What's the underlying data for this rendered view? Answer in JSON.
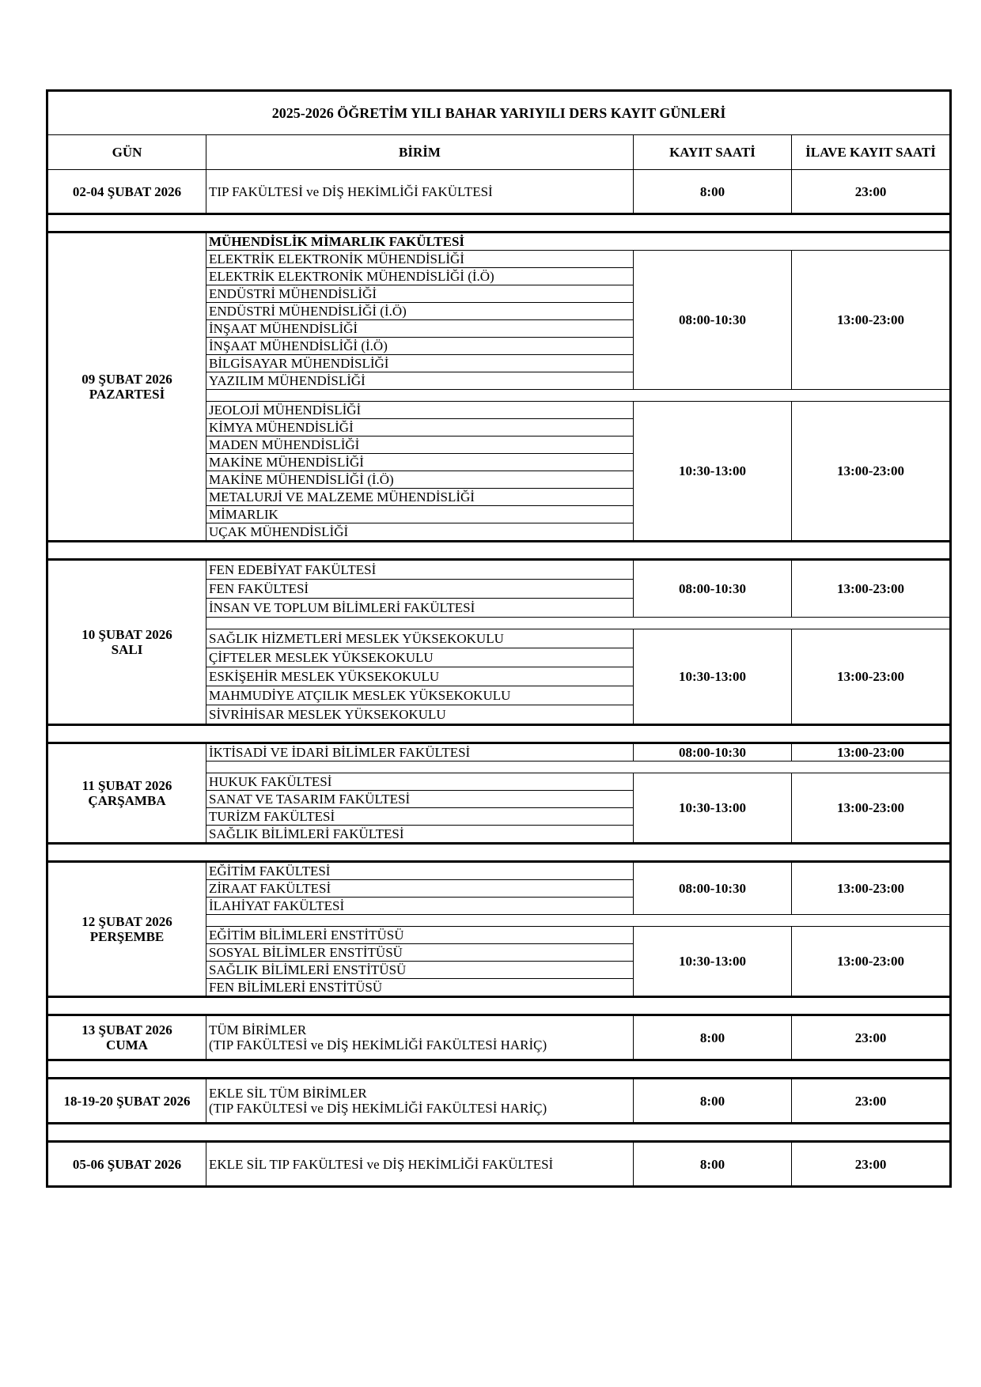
{
  "title": "2025-2026 ÖĞRETİM YILI BAHAR YARIYILI DERS KAYIT GÜNLERİ",
  "headers": {
    "gun": "GÜN",
    "birim": "BİRİM",
    "kayit": "KAYIT SAATİ",
    "ilave": "İLAVE KAYIT SAATİ"
  },
  "blocks": [
    {
      "day": [
        "02-04 ŞUBAT 2026"
      ],
      "single": true,
      "groups": [
        {
          "units": [
            [
              "TIP FAKÜLTESİ ve DİŞ HEKİMLİĞİ FAKÜLTESİ"
            ]
          ],
          "kayit": "8:00",
          "ilave": "23:00"
        }
      ]
    },
    {
      "day": [
        "09 ŞUBAT 2026",
        "PAZARTESİ"
      ],
      "faculty_header": "MÜHENDİSLİK MİMARLIK FAKÜLTESİ",
      "groups": [
        {
          "units": [
            [
              "ELEKTRİK ELEKTRONİK MÜHENDİSLİĞİ"
            ],
            [
              "ELEKTRİK ELEKTRONİK MÜHENDİSLİĞİ (İ.Ö)"
            ],
            [
              "ENDÜSTRİ MÜHENDİSLİĞİ"
            ],
            [
              "ENDÜSTRİ MÜHENDİSLİĞİ (İ.Ö)"
            ],
            [
              "İNŞAAT MÜHENDİSLİĞİ"
            ],
            [
              "İNŞAAT MÜHENDİSLİĞİ (İ.Ö)"
            ],
            [
              "BİLGİSAYAR MÜHENDİSLİĞİ"
            ],
            [
              "YAZILIM MÜHENDİSLİĞİ"
            ]
          ],
          "kayit": "08:00-10:30",
          "ilave": "13:00-23:00"
        },
        {
          "units": [
            [
              "JEOLOJİ MÜHENDİSLİĞİ"
            ],
            [
              "KİMYA MÜHENDİSLİĞİ"
            ],
            [
              "MADEN MÜHENDİSLİĞİ"
            ],
            [
              "MAKİNE MÜHENDİSLİĞİ"
            ],
            [
              "MAKİNE MÜHENDİSLİĞİ (İ.Ö)"
            ],
            [
              "METALURJİ VE MALZEME MÜHENDİSLİĞİ"
            ],
            [
              "MİMARLIK"
            ],
            [
              "UÇAK MÜHENDİSLİĞİ"
            ]
          ],
          "kayit": "10:30-13:00",
          "ilave": "13:00-23:00"
        }
      ]
    },
    {
      "day": [
        "10 ŞUBAT 2026",
        "SALI"
      ],
      "tall": true,
      "groups": [
        {
          "units": [
            [
              "FEN EDEBİYAT FAKÜLTESİ"
            ],
            [
              "FEN FAKÜLTESİ"
            ],
            [
              "İNSAN VE TOPLUM BİLİMLERİ FAKÜLTESİ"
            ]
          ],
          "kayit": "08:00-10:30",
          "ilave": "13:00-23:00"
        },
        {
          "units": [
            [
              "SAĞLIK HİZMETLERİ MESLEK YÜKSEKOKULU"
            ],
            [
              "ÇİFTELER MESLEK YÜKSEKOKULU"
            ],
            [
              "ESKİŞEHİR MESLEK YÜKSEKOKULU"
            ],
            [
              "MAHMUDİYE ATÇILIK MESLEK YÜKSEKOKULU"
            ],
            [
              "SİVRİHİSAR MESLEK YÜKSEKOKULU"
            ]
          ],
          "kayit": "10:30-13:00",
          "ilave": "13:00-23:00"
        }
      ]
    },
    {
      "day": [
        "11 ŞUBAT 2026",
        "ÇARŞAMBA"
      ],
      "groups": [
        {
          "units": [
            [
              "İKTİSADİ VE İDARİ BİLİMLER FAKÜLTESİ"
            ]
          ],
          "kayit": "08:00-10:30",
          "ilave": "13:00-23:00"
        },
        {
          "units": [
            [
              "HUKUK FAKÜLTESİ"
            ],
            [
              "SANAT VE TASARIM FAKÜLTESİ"
            ],
            [
              "TURİZM FAKÜLTESİ"
            ],
            [
              "SAĞLIK BİLİMLERİ FAKÜLTESİ"
            ]
          ],
          "kayit": "10:30-13:00",
          "ilave": "13:00-23:00"
        }
      ]
    },
    {
      "day": [
        "12 ŞUBAT 2026",
        "PERŞEMBE"
      ],
      "groups": [
        {
          "units": [
            [
              "EĞİTİM FAKÜLTESİ"
            ],
            [
              "ZİRAAT FAKÜLTESİ"
            ],
            [
              "İLAHİYAT FAKÜLTESİ"
            ]
          ],
          "kayit": "08:00-10:30",
          "ilave": "13:00-23:00"
        },
        {
          "units": [
            [
              "EĞİTİM BİLİMLERİ ENSTİTÜSÜ"
            ],
            [
              "SOSYAL BİLİMLER ENSTİTÜSÜ"
            ],
            [
              "SAĞLIK BİLİMLERİ ENSTİTÜSÜ"
            ],
            [
              "FEN BİLİMLERİ ENSTİTÜSÜ"
            ]
          ],
          "kayit": "10:30-13:00",
          "ilave": "13:00-23:00"
        }
      ]
    },
    {
      "day": [
        "13 ŞUBAT 2026",
        "CUMA"
      ],
      "single": true,
      "groups": [
        {
          "units": [
            [
              "TÜM BİRİMLER",
              "(TIP FAKÜLTESİ ve DİŞ HEKİMLİĞİ FAKÜLTESİ HARİÇ)"
            ]
          ],
          "kayit": "8:00",
          "ilave": "23:00"
        }
      ]
    },
    {
      "day": [
        "18-19-20 ŞUBAT 2026"
      ],
      "single": true,
      "groups": [
        {
          "units": [
            [
              "EKLE SİL TÜM BİRİMLER",
              "(TIP FAKÜLTESİ ve DİŞ HEKİMLİĞİ FAKÜLTESİ HARİÇ)"
            ]
          ],
          "kayit": "8:00",
          "ilave": "23:00"
        }
      ]
    },
    {
      "day": [
        "05-06 ŞUBAT 2026"
      ],
      "single": true,
      "groups": [
        {
          "units": [
            [
              "EKLE SİL TIP FAKÜLTESİ ve DİŞ HEKİMLİĞİ FAKÜLTESİ"
            ]
          ],
          "kayit": "8:00",
          "ilave": "23:00"
        }
      ]
    }
  ]
}
